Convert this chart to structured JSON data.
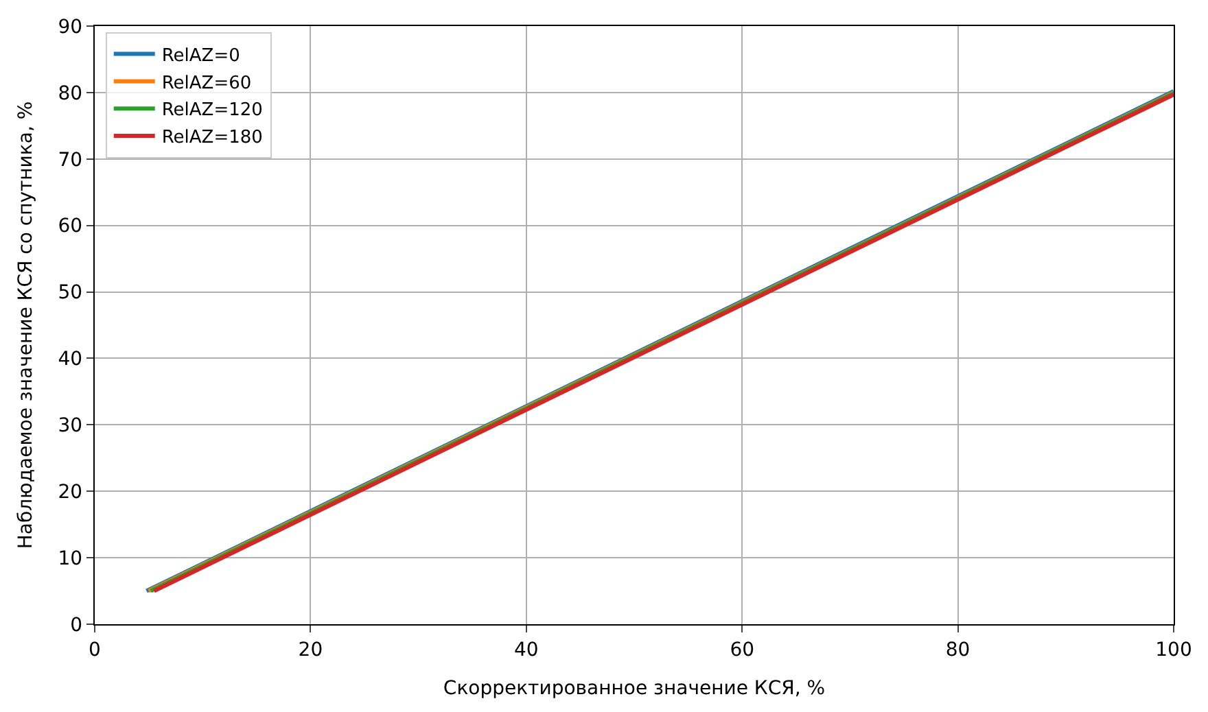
{
  "chart_data": {
    "type": "line",
    "xlabel": "Скорректированное значение КСЯ, %",
    "ylabel": "Наблюдаемое значение КСЯ со спутника, %",
    "series": [
      {
        "name": "RelAZ=0",
        "color": "#1f77b4",
        "x": [
          4.8,
          100
        ],
        "values": [
          5,
          80.2
        ]
      },
      {
        "name": "RelAZ=60",
        "color": "#ff7f0e",
        "x": [
          5.0,
          100
        ],
        "values": [
          5,
          80.0
        ]
      },
      {
        "name": "RelAZ=120",
        "color": "#2ca02c",
        "x": [
          5.2,
          100
        ],
        "values": [
          5,
          79.9
        ]
      },
      {
        "name": "RelAZ=180",
        "color": "#d62728",
        "x": [
          5.5,
          100
        ],
        "values": [
          5,
          79.7
        ]
      }
    ],
    "xlim": [
      0,
      100
    ],
    "xticks": [
      0,
      20,
      40,
      60,
      80,
      100
    ],
    "ylim": [
      0,
      90
    ],
    "yticks": [
      0,
      10,
      20,
      30,
      40,
      50,
      60,
      70,
      80,
      90
    ],
    "grid": true,
    "legend": "top left",
    "line_style": "solid",
    "marker": "none"
  }
}
